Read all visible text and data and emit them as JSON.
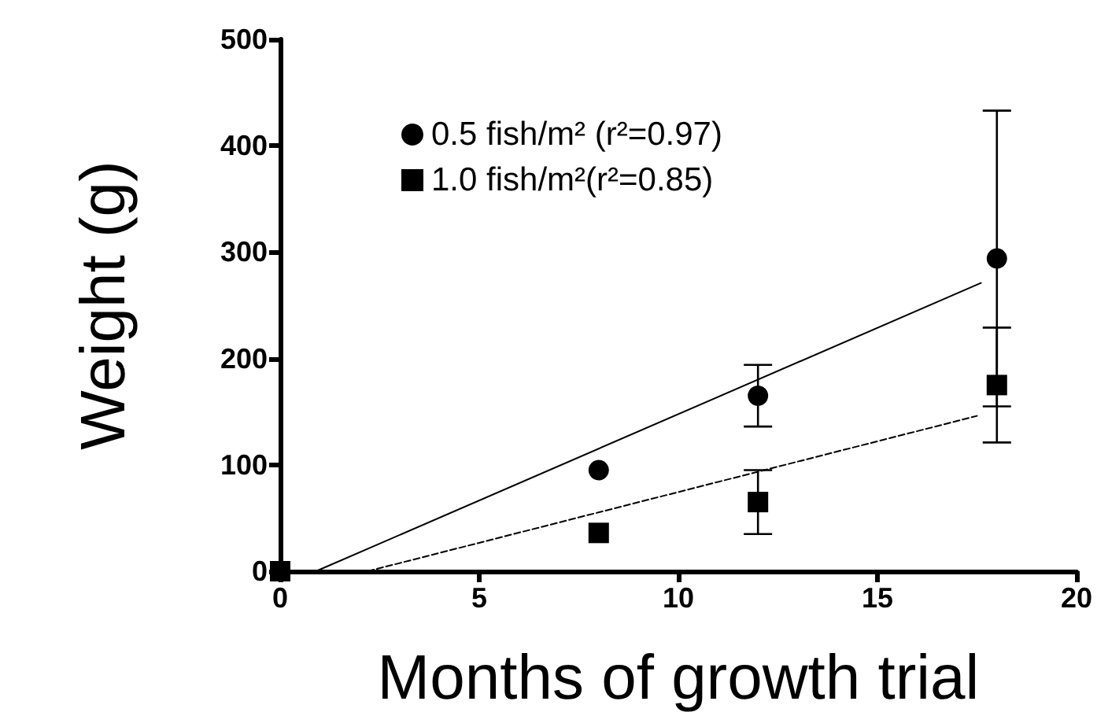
{
  "chart_data": {
    "type": "scatter",
    "xlabel": "Months of growth trial",
    "ylabel": "Weight (g)",
    "xlim": [
      0,
      20
    ],
    "xticks": [
      0,
      5,
      10,
      15,
      20
    ],
    "ylim": [
      0,
      500
    ],
    "yticks": [
      0,
      100,
      200,
      300,
      400,
      500
    ],
    "grid": false,
    "legend": "top left",
    "series": [
      {
        "name": "0.5 fish/m² (r²=0.97)",
        "marker": "circle",
        "color": "#000000",
        "x": [
          8,
          12,
          18
        ],
        "values": [
          95,
          165,
          294
        ],
        "errors": [
          null,
          29,
          139
        ]
      },
      {
        "name": "1.0 fish/m²(r²=0.85)",
        "marker": "square",
        "color": "#000000",
        "x": [
          0,
          8,
          12,
          18
        ],
        "values": [
          0,
          36,
          65,
          175
        ],
        "errors": [
          null,
          null,
          30,
          54
        ]
      },
      {
        "type": "line",
        "line_style": "solid",
        "marker": "none",
        "color": "#000000",
        "x": [
          0.9,
          17.6
        ],
        "values": [
          0,
          271
        ]
      },
      {
        "type": "line",
        "line_style": "dashed",
        "marker": "none",
        "color": "#000000",
        "x": [
          2.2,
          17.5
        ],
        "values": [
          0,
          146
        ]
      }
    ]
  }
}
